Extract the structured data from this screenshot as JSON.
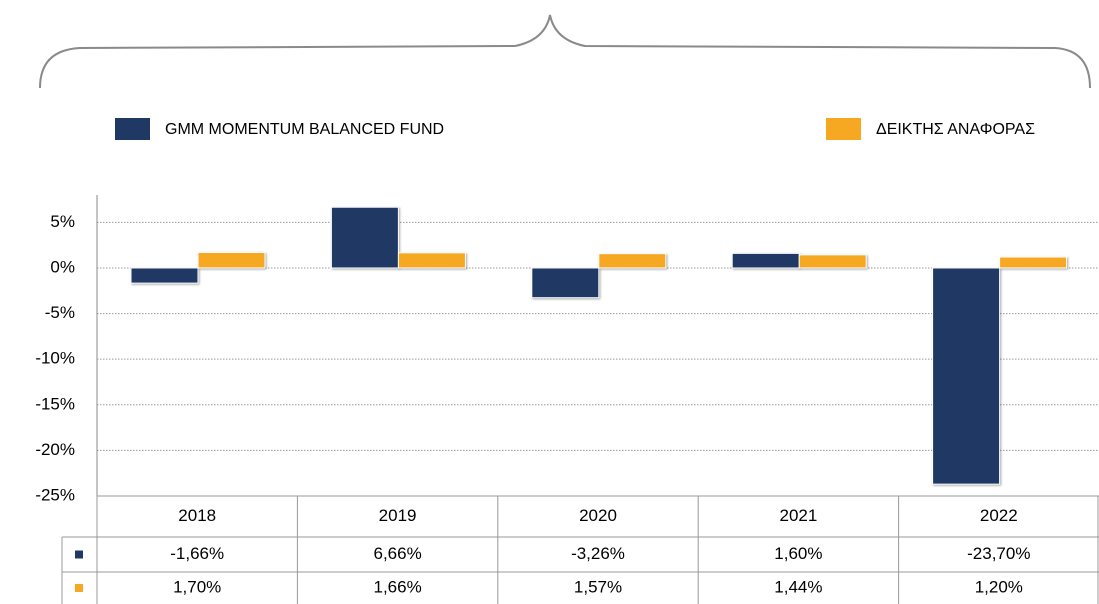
{
  "chart_data": {
    "type": "bar",
    "categories": [
      "2018",
      "2019",
      "2020",
      "2021",
      "2022"
    ],
    "series": [
      {
        "name": "GMM MOMENTUM BALANCED FUND",
        "color": "#1f3864",
        "values": [
          -1.66,
          6.66,
          -3.26,
          1.6,
          -23.7
        ],
        "value_labels": [
          "-1,66%",
          "6,66%",
          "-3,26%",
          "1,60%",
          "-23,70%"
        ]
      },
      {
        "name": "ΔΕΙΚΤΗΣ ΑΝΑΦΟΡΑΣ",
        "color": "#f7a823",
        "values": [
          1.7,
          1.66,
          1.57,
          1.44,
          1.2
        ],
        "value_labels": [
          "1,70%",
          "1,66%",
          "1,57%",
          "1,44%",
          "1,20%"
        ]
      }
    ],
    "ylim": [
      -25,
      8
    ],
    "yticks": [
      {
        "value": -25,
        "label": "-25%"
      },
      {
        "value": -20,
        "label": "-20%"
      },
      {
        "value": -15,
        "label": "-15%"
      },
      {
        "value": -10,
        "label": "-10%"
      },
      {
        "value": -5,
        "label": "-5%"
      },
      {
        "value": 0,
        "label": "0%"
      },
      {
        "value": 5,
        "label": "5%"
      }
    ],
    "grid": true
  }
}
